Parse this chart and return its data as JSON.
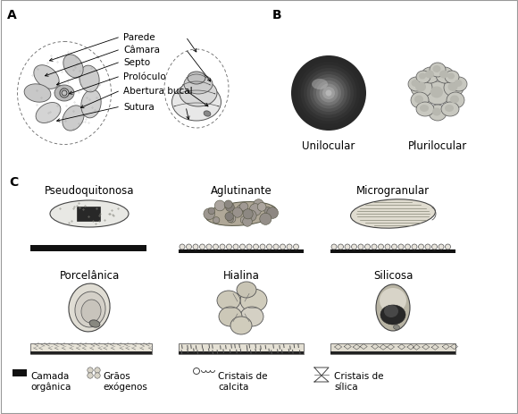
{
  "bg_color": "#ffffff",
  "border_color": "#aaaaaa",
  "title_A": "A",
  "title_B": "B",
  "title_C": "C",
  "labels_A": [
    "Parede",
    "Câmara",
    "Septo",
    "Prolóculo",
    "Abertura bucal",
    "Sutura"
  ],
  "labels_B": [
    "Unilocular",
    "Plurilocular"
  ],
  "labels_C_row1": [
    "Pseudoquitonosa",
    "Aglutinante",
    "Microgranular"
  ],
  "labels_C_row2": [
    "Porcelânica",
    "Hialina",
    "Silicosa"
  ],
  "legend_labels": [
    "Camada\norgânica",
    "Grãos\nexógenos",
    "Cristais de\ncalcita",
    "Cristais de\nsílica"
  ],
  "fs_title": 10,
  "fs_label": 8.5,
  "fs_small": 7.5,
  "fs_legend": 7.5
}
